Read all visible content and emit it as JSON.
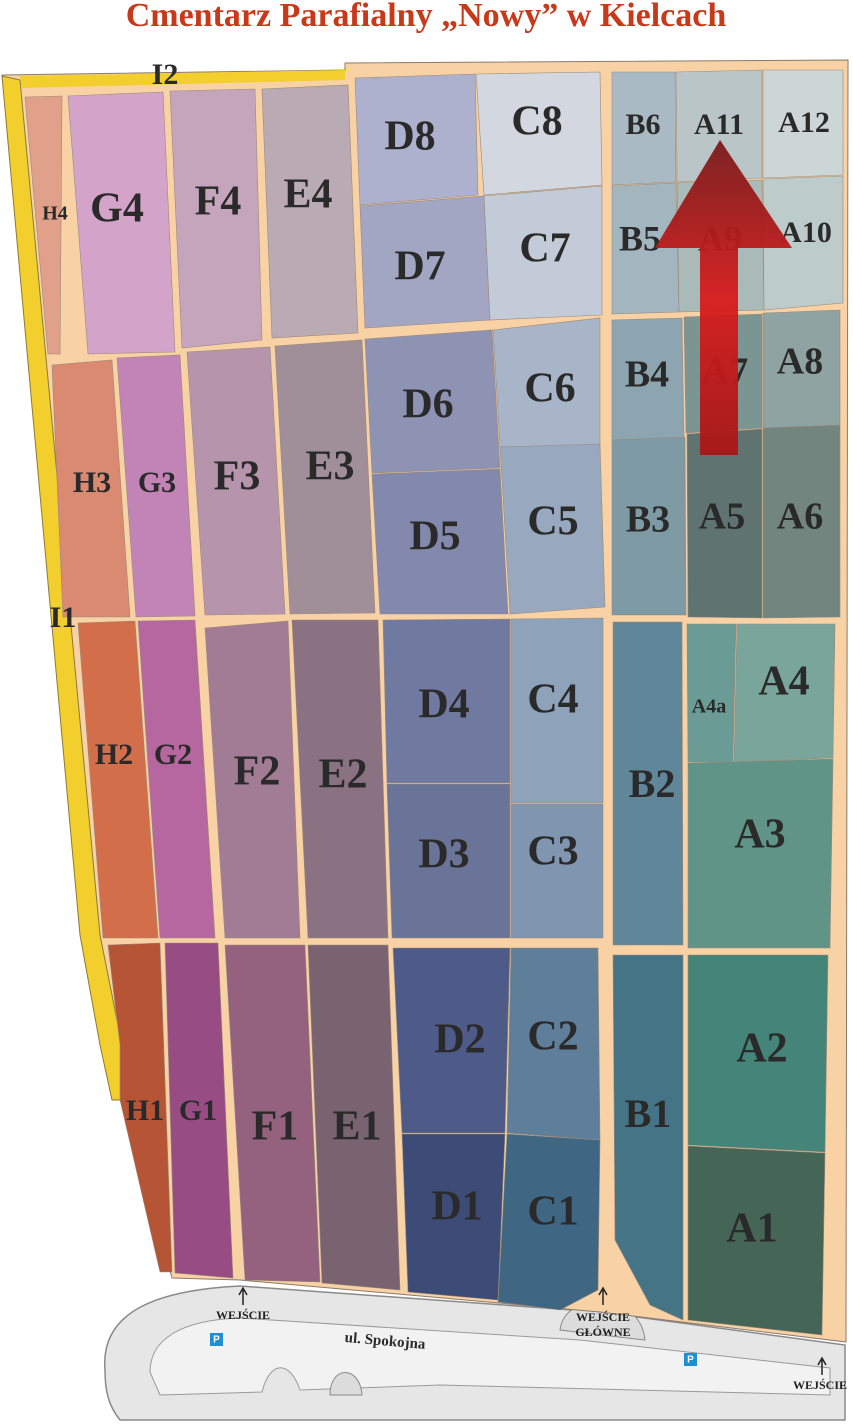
{
  "title": "Cmentarz Parafialny „Nowy” w Kielcach",
  "alleys": [
    "I2",
    "I1"
  ],
  "sections": [
    "H4",
    "G4",
    "F4",
    "E4",
    "D8",
    "C8",
    "B6",
    "A11",
    "A12",
    "D7",
    "C7",
    "B5",
    "A9",
    "A10",
    "H3",
    "G3",
    "F3",
    "E3",
    "D6",
    "C6",
    "B4",
    "A7",
    "A8",
    "D5",
    "C5",
    "B3",
    "A5",
    "A6",
    "H2",
    "G2",
    "F2",
    "E2",
    "D4",
    "C4",
    "D3",
    "C3",
    "B2",
    "A4a",
    "A4",
    "A3",
    "H1",
    "G1",
    "F1",
    "E1",
    "D2",
    "C2",
    "D1",
    "C1",
    "B1",
    "A2",
    "A1"
  ],
  "street": "ul. Spokojna",
  "entrances": [
    {
      "lines": [
        "WEJŚCIE"
      ]
    },
    {
      "lines": [
        "WEJŚCIE",
        "GŁÓWNE"
      ]
    },
    {
      "lines": [
        "WEJŚCIE"
      ]
    }
  ],
  "parking": [
    "P",
    "P"
  ]
}
